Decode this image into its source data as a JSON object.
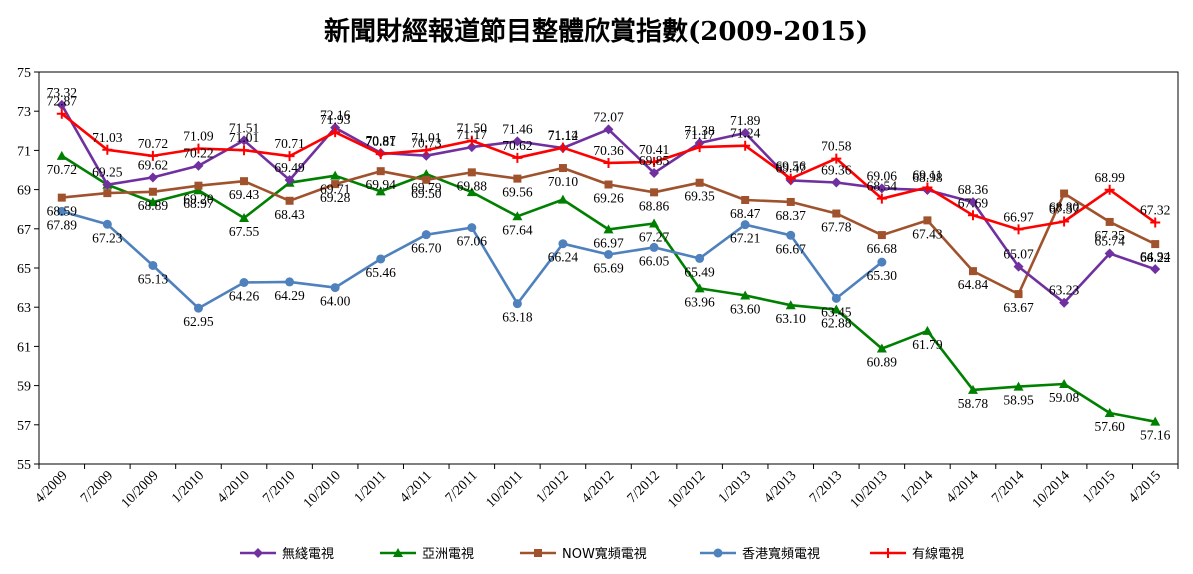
{
  "chart_data": {
    "type": "line",
    "title": "新聞財經報道節目整體欣賞指數(2009-2015)",
    "xlabel": "",
    "ylabel": "",
    "ylim": [
      55,
      75
    ],
    "yticks": [
      55,
      57,
      59,
      61,
      63,
      65,
      67,
      69,
      71,
      73,
      75
    ],
    "grid": false,
    "legend_position": "bottom",
    "categories": [
      "4/2009",
      "7/2009",
      "10/2009",
      "1/2010",
      "4/2010",
      "7/2010",
      "10/2010",
      "1/2011",
      "4/2011",
      "7/2011",
      "10/2011",
      "1/2012",
      "4/2012",
      "7/2012",
      "10/2012",
      "1/2013",
      "4/2013",
      "7/2013",
      "10/2013",
      "1/2014",
      "4/2014",
      "7/2014",
      "10/2014",
      "1/2015",
      "4/2015"
    ],
    "series": [
      {
        "name": "無綫電視",
        "color": "#7030A0",
        "marker": "diamond",
        "values": [
          73.32,
          69.25,
          69.62,
          70.22,
          71.51,
          69.49,
          72.16,
          70.87,
          70.73,
          71.17,
          71.46,
          71.12,
          72.07,
          69.85,
          71.38,
          71.89,
          69.47,
          69.36,
          69.06,
          68.98,
          68.36,
          65.07,
          63.23,
          65.74,
          64.94
        ],
        "labels": [
          "73.32",
          "69.25",
          "69.62",
          "70.22",
          "71.51",
          "69.49",
          "72.16",
          "70.87",
          "70.73",
          "71.17",
          "71.46",
          "71.12",
          "72.07",
          "69.85",
          "71.38",
          "71.89",
          "69.47",
          "69.36",
          "69.06",
          "68.98",
          "68.36",
          "65.07",
          "63.23",
          "65.74",
          "64.94"
        ]
      },
      {
        "name": "亞洲電視",
        "color": "#008000",
        "marker": "triangle",
        "values": [
          70.72,
          69.25,
          68.36,
          68.97,
          67.55,
          69.35,
          69.71,
          68.91,
          69.79,
          68.87,
          67.64,
          68.49,
          66.97,
          67.27,
          63.96,
          63.6,
          63.1,
          62.88,
          60.89,
          61.79,
          58.78,
          58.95,
          59.08,
          57.6,
          57.16
        ],
        "labels": [
          "70.72",
          "",
          "",
          "68.97",
          "67.55",
          "",
          "69.71",
          "",
          "69.79",
          "",
          "67.64",
          "",
          "66.97",
          "67.27",
          "63.96",
          "63.60",
          "63.10",
          "62.88",
          "60.89",
          "61.79",
          "58.78",
          "58.95",
          "59.08",
          "57.60",
          "57.16"
        ]
      },
      {
        "name": "NOW寬頻電視",
        "color": "#A0522D",
        "marker": "square",
        "values": [
          68.59,
          68.82,
          68.89,
          69.2,
          69.43,
          68.43,
          69.28,
          69.94,
          69.5,
          69.88,
          69.56,
          70.1,
          69.26,
          68.86,
          69.35,
          68.47,
          68.37,
          67.78,
          66.68,
          67.43,
          64.84,
          63.67,
          68.8,
          67.35,
          66.22
        ],
        "labels": [
          "68.59",
          "",
          "68.89",
          "69.20",
          "69.43",
          "68.43",
          "69.28",
          "69.94",
          "69.50",
          "69.88",
          "69.56",
          "70.10",
          "69.26",
          "68.86",
          "69.35",
          "68.47",
          "68.37",
          "67.78",
          "66.68",
          "67.43",
          "64.84",
          "63.67",
          "68.80",
          "67.35",
          "66.22"
        ]
      },
      {
        "name": "香港寬頻電視",
        "color": "#4F81BD",
        "marker": "circle",
        "values": [
          67.89,
          67.23,
          65.13,
          62.95,
          64.26,
          64.29,
          64.0,
          65.46,
          66.7,
          67.06,
          63.18,
          66.24,
          65.69,
          66.05,
          65.49,
          67.21,
          66.67,
          63.45,
          65.3,
          null,
          null,
          null,
          null,
          null,
          null
        ],
        "labels": [
          "67.89",
          "67.23",
          "65.13",
          "62.95",
          "64.26",
          "64.29",
          "64.00",
          "65.46",
          "66.70",
          "67.06",
          "63.18",
          "66.24",
          "65.69",
          "66.05",
          "65.49",
          "67.21",
          "66.67",
          "63.45",
          "65.30",
          "",
          "",
          "",
          "",
          "",
          ""
        ]
      },
      {
        "name": "有線電視",
        "color": "#FF0000",
        "marker": "plus",
        "values": [
          72.87,
          71.03,
          70.72,
          71.09,
          71.01,
          70.71,
          71.93,
          70.81,
          71.01,
          71.5,
          70.62,
          71.14,
          70.36,
          70.41,
          71.17,
          71.24,
          69.56,
          70.58,
          68.54,
          69.11,
          67.69,
          66.97,
          67.37,
          68.99,
          67.32
        ],
        "labels": [
          "72.87",
          "71.03",
          "70.72",
          "71.09",
          "71.01",
          "70.71",
          "71.93",
          "70.81",
          "71.01",
          "71.50",
          "70.62",
          "71.14",
          "70.36",
          "70.41",
          "71.17",
          "71.24",
          "69.56",
          "70.58",
          "68.54",
          "69.11",
          "67.69",
          "66.97",
          "67.37",
          "68.99",
          "67.32"
        ]
      }
    ]
  }
}
